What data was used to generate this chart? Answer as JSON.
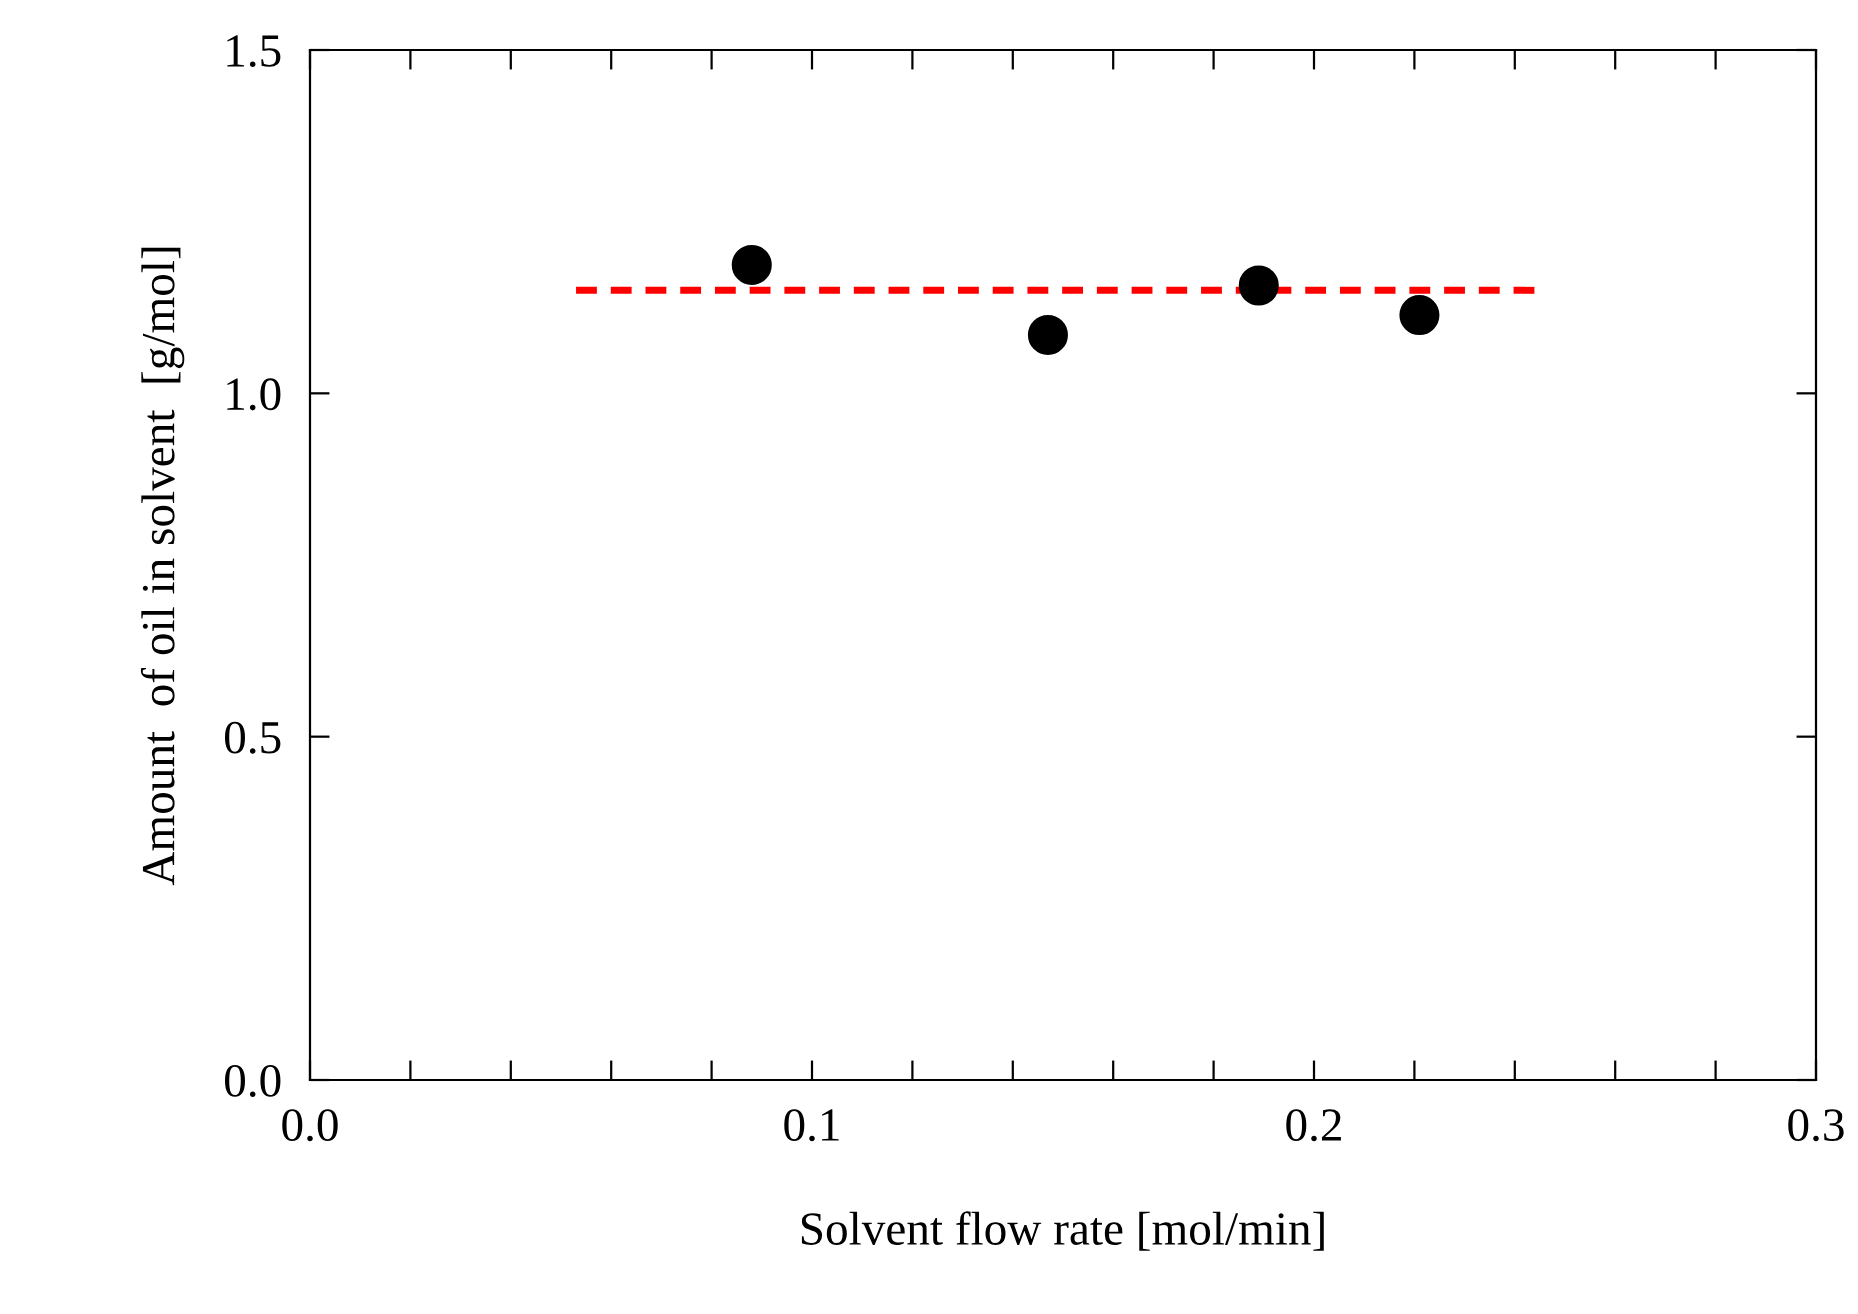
{
  "chart_data": {
    "type": "scatter",
    "xlabel": "Solvent flow rate [mol/min]",
    "ylabel": "Amount  of oil in solvent  [g/mol]",
    "xlim": [
      0,
      0.3
    ],
    "ylim": [
      0,
      1.5
    ],
    "xticks": [
      {
        "value": 0,
        "label": "0.0"
      },
      {
        "value": 0.02,
        "label": null
      },
      {
        "value": 0.04,
        "label": null
      },
      {
        "value": 0.06,
        "label": null
      },
      {
        "value": 0.08,
        "label": null
      },
      {
        "value": 0.1,
        "label": "0.1"
      },
      {
        "value": 0.12,
        "label": null
      },
      {
        "value": 0.14,
        "label": null
      },
      {
        "value": 0.16,
        "label": null
      },
      {
        "value": 0.18,
        "label": null
      },
      {
        "value": 0.2,
        "label": "0.2"
      },
      {
        "value": 0.22,
        "label": null
      },
      {
        "value": 0.24,
        "label": null
      },
      {
        "value": 0.26,
        "label": null
      },
      {
        "value": 0.28,
        "label": null
      },
      {
        "value": 0.3,
        "label": "0.3"
      }
    ],
    "yticks": [
      {
        "value": 0,
        "label": "0.0"
      },
      {
        "value": 0.5,
        "label": "0.5"
      },
      {
        "value": 1.0,
        "label": "1.0"
      },
      {
        "value": 1.5,
        "label": "1.5"
      }
    ],
    "grid": false,
    "legend": false,
    "series": [
      {
        "color": "#000000",
        "marker": "circle",
        "x": [
          0.088,
          0.147,
          0.189,
          0.221
        ],
        "values": [
          1.187,
          1.085,
          1.157,
          1.114
        ]
      },
      {
        "type": "line",
        "color": "#ff0000",
        "line_style": "dashed",
        "marker": "none",
        "x": [
          0.053,
          0.244
        ],
        "values": [
          1.15,
          1.15
        ]
      }
    ]
  }
}
